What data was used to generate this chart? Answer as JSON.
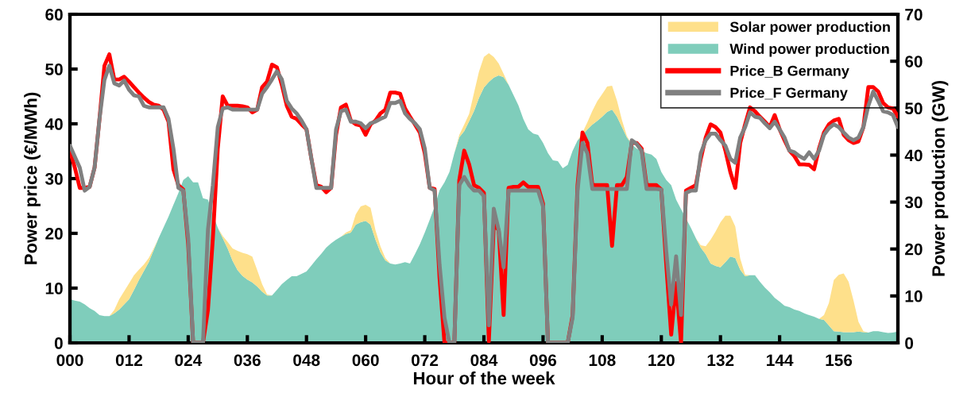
{
  "chart_data": {
    "type": "line",
    "xlabel": "Hour of the week",
    "ylabel": "Power price (€/MWh)",
    "y2label": "Power production (GW)",
    "x": [
      0,
      1,
      2,
      3,
      4,
      5,
      6,
      7,
      8,
      9,
      10,
      11,
      12,
      13,
      14,
      15,
      16,
      17,
      18,
      19,
      20,
      21,
      22,
      23,
      24,
      25,
      26,
      27,
      28,
      29,
      30,
      31,
      32,
      33,
      34,
      35,
      36,
      37,
      38,
      39,
      40,
      41,
      42,
      43,
      44,
      45,
      46,
      47,
      48,
      49,
      50,
      51,
      52,
      53,
      54,
      55,
      56,
      57,
      58,
      59,
      60,
      61,
      62,
      63,
      64,
      65,
      66,
      67,
      68,
      69,
      70,
      71,
      72,
      73,
      74,
      75,
      76,
      77,
      78,
      79,
      80,
      81,
      82,
      83,
      84,
      85,
      86,
      87,
      88,
      89,
      90,
      91,
      92,
      93,
      94,
      95,
      96,
      97,
      98,
      99,
      100,
      101,
      102,
      103,
      104,
      105,
      106,
      107,
      108,
      109,
      110,
      111,
      112,
      113,
      114,
      115,
      116,
      117,
      118,
      119,
      120,
      121,
      122,
      123,
      124,
      125,
      126,
      127,
      128,
      129,
      130,
      131,
      132,
      133,
      134,
      135,
      136,
      137,
      138,
      139,
      140,
      141,
      142,
      143,
      144,
      145,
      146,
      147,
      148,
      149,
      150,
      151,
      152,
      153,
      154,
      155,
      156,
      157,
      158,
      159,
      160,
      161,
      162,
      163,
      164,
      165,
      166,
      167,
      168
    ],
    "xlim": [
      0,
      168
    ],
    "xticks": [
      {
        "value": 0,
        "label": "000"
      },
      {
        "value": 12,
        "label": "012"
      },
      {
        "value": 24,
        "label": "024"
      },
      {
        "value": 36,
        "label": "036"
      },
      {
        "value": 48,
        "label": "048"
      },
      {
        "value": 60,
        "label": "060"
      },
      {
        "value": 72,
        "label": "072"
      },
      {
        "value": 84,
        "label": "084"
      },
      {
        "value": 96,
        "label": "096"
      },
      {
        "value": 108,
        "label": "108"
      },
      {
        "value": 120,
        "label": "120"
      },
      {
        "value": 132,
        "label": "132"
      },
      {
        "value": 144,
        "label": "144"
      },
      {
        "value": 156,
        "label": "156"
      }
    ],
    "ylim": [
      0,
      60
    ],
    "yticks": [
      0,
      10,
      20,
      30,
      40,
      50,
      60
    ],
    "y2lim": [
      0,
      70
    ],
    "y2ticks": [
      0,
      10,
      20,
      30,
      40,
      50,
      60,
      70
    ],
    "stacked": true,
    "legend": "top right",
    "grid": false,
    "series": [
      {
        "name": "Wind power production",
        "type": "area",
        "axis": "y2",
        "color": "#7fcdbb",
        "values": [
          9.3,
          9.0,
          8.8,
          8.2,
          7.4,
          6.8,
          5.9,
          5.7,
          5.7,
          6.3,
          7.1,
          8.2,
          9.3,
          11.3,
          13.4,
          15.3,
          17.2,
          19.8,
          22.3,
          24.6,
          26.9,
          29.4,
          31.9,
          34.7,
          35.5,
          34.2,
          34.2,
          30.8,
          30.5,
          27.4,
          24.5,
          22.3,
          20.1,
          17.5,
          15.5,
          14.3,
          13.5,
          12.9,
          12.0,
          10.9,
          10.1,
          10.1,
          11.3,
          12.5,
          13.4,
          14.2,
          14.2,
          14.7,
          15.2,
          16.5,
          17.8,
          19.0,
          20.3,
          21.2,
          22.0,
          22.6,
          23.2,
          23.5,
          25.2,
          25.7,
          26.0,
          25.2,
          22.0,
          19.3,
          17.6,
          16.9,
          16.7,
          16.9,
          17.2,
          16.9,
          18.9,
          21.0,
          23.5,
          26.2,
          29.1,
          32.5,
          34.2,
          36.4,
          40.4,
          43.8,
          45.1,
          47.2,
          49.4,
          52.2,
          54.4,
          55.6,
          56.5,
          57.0,
          56.6,
          55.0,
          52.8,
          50.6,
          47.7,
          45.5,
          44.6,
          44.3,
          42.6,
          40.4,
          38.9,
          38.7,
          37.2,
          37.9,
          40.9,
          43.1,
          44.3,
          45.5,
          46.5,
          47.3,
          48.2,
          49.2,
          49.7,
          48.2,
          46.0,
          43.8,
          42.3,
          41.4,
          40.9,
          40.4,
          40.1,
          39.2,
          36.4,
          34.7,
          33.6,
          30.5,
          28.5,
          26.5,
          24.5,
          22.3,
          20.3,
          18.9,
          16.9,
          16.4,
          16.1,
          17.2,
          18.4,
          18.1,
          15.6,
          14.2,
          14.4,
          14.4,
          13.0,
          11.8,
          10.8,
          9.6,
          8.8,
          7.9,
          7.6,
          7.1,
          6.8,
          6.3,
          5.9,
          5.6,
          5.1,
          4.9,
          3.7,
          2.5,
          2.4,
          2.3,
          2.3,
          2.3,
          2.4,
          2.3,
          2.2,
          2.5,
          2.5,
          2.3,
          2.1,
          2.2,
          2.4
        ]
      },
      {
        "name": "Solar power production",
        "type": "area",
        "axis": "y2",
        "color": "#fee08b",
        "values": [
          0,
          0,
          0,
          0,
          0,
          0,
          0,
          0,
          0,
          0.7,
          2.2,
          2.8,
          3.4,
          3.1,
          2.2,
          1.4,
          0.9,
          0.3,
          0,
          0,
          0,
          0,
          0,
          0,
          0,
          0,
          0,
          0,
          0,
          0,
          0,
          0.5,
          1.4,
          2.6,
          4.1,
          4.9,
          5.4,
          5.5,
          3.5,
          1.6,
          0.2,
          0,
          0,
          0,
          0,
          0,
          0,
          0,
          0,
          0,
          0,
          0,
          0,
          0,
          0,
          0,
          0.3,
          0.5,
          2.2,
          3.4,
          3.4,
          3.6,
          2.0,
          1.3,
          0.5,
          0,
          0,
          0,
          0,
          0,
          0,
          0,
          0,
          0,
          0,
          0,
          0,
          0,
          0,
          0.5,
          1.4,
          1.6,
          3.9,
          5.6,
          6.5,
          6.1,
          4.4,
          2.5,
          0.7,
          0,
          0,
          0,
          0,
          0,
          0,
          0,
          0,
          0,
          0,
          0,
          0,
          0,
          0,
          0,
          0.5,
          1.5,
          2.9,
          4.2,
          4.8,
          5.4,
          5.1,
          3.4,
          1.5,
          0.3,
          0,
          0,
          0,
          0,
          0,
          0,
          0,
          0,
          0,
          0,
          0,
          0,
          0,
          0,
          0.5,
          1.7,
          5.1,
          7.3,
          9.6,
          9.9,
          8.7,
          6.7,
          2.4,
          0.3,
          0,
          0,
          0,
          0,
          0,
          0,
          0,
          0,
          0,
          0,
          0,
          0,
          0,
          0,
          0,
          1.0,
          4.8,
          10.9,
          12.1,
          12.5,
          10.7,
          6.7,
          2.1,
          0.2,
          0,
          0,
          0,
          0,
          0,
          0,
          0
        ]
      },
      {
        "name": "Price_B Germany",
        "type": "line",
        "axis": "y",
        "color": "#ff0000",
        "values": [
          35.1,
          32,
          28.3,
          28.3,
          28.5,
          32,
          40.9,
          50.6,
          52.7,
          48.1,
          48.1,
          48.6,
          47.7,
          46.7,
          45.7,
          44.8,
          44,
          43.5,
          43.3,
          42.6,
          40.4,
          31.7,
          28.8,
          28,
          18,
          0,
          0,
          0,
          6,
          19.1,
          35.5,
          45,
          43.3,
          43.3,
          43.3,
          43.2,
          43,
          42.1,
          42.6,
          46.7,
          47.7,
          50.8,
          50.3,
          47.1,
          43.3,
          41.3,
          40.9,
          39.9,
          39,
          33.6,
          28.8,
          28.5,
          27.5,
          28.3,
          38,
          43,
          43.5,
          40.6,
          39.9,
          39.7,
          38,
          39.9,
          40.6,
          41.9,
          42.6,
          45.7,
          45.7,
          45.5,
          42.8,
          41.3,
          39.9,
          38.4,
          34.6,
          28.3,
          28.1,
          11.9,
          0,
          0,
          0,
          29.7,
          35.1,
          32.6,
          28.8,
          28.3,
          27.4,
          0.3,
          21.6,
          20.6,
          5.1,
          28.3,
          28.5,
          28.5,
          29.3,
          28.5,
          28.5,
          28.5,
          25.4,
          0,
          0,
          0,
          0,
          0,
          5,
          28.8,
          38.4,
          36.5,
          28.8,
          28.8,
          28.8,
          28.8,
          17.7,
          28.8,
          28.8,
          30.3,
          36.5,
          36.5,
          35.5,
          28.8,
          28.8,
          28.8,
          28,
          14.3,
          1.5,
          10.9,
          0,
          27.8,
          28.3,
          28.8,
          33.6,
          37.5,
          39.9,
          39.4,
          38.4,
          35.1,
          31.2,
          28.3,
          36.5,
          39.9,
          43,
          42.3,
          41.3,
          40.4,
          39.4,
          41.6,
          39,
          37,
          35.1,
          34.1,
          32.6,
          32.6,
          32.5,
          31.7,
          35.5,
          38.4,
          39.9,
          40.6,
          40.9,
          38,
          37,
          36.5,
          36.8,
          39.4,
          46.7,
          46.7,
          45.9,
          43.8,
          43,
          42.8,
          41.3
        ]
      },
      {
        "name": "Price_F Germany",
        "type": "line",
        "axis": "y",
        "color": "#808080",
        "values": [
          36,
          34,
          32,
          27.8,
          28.5,
          32,
          40.9,
          48,
          50.6,
          47.4,
          47,
          47.9,
          46.2,
          45.2,
          45,
          43.3,
          43,
          43,
          43,
          43,
          40.9,
          35.5,
          28.3,
          27.8,
          19.1,
          0,
          0,
          0,
          20.6,
          28.8,
          39.4,
          42.8,
          43,
          42.6,
          42.6,
          42.6,
          42.6,
          42.6,
          42.6,
          45.5,
          46.7,
          48.1,
          49.6,
          48.1,
          44.2,
          42.8,
          41.9,
          40.6,
          39,
          33.6,
          28.3,
          28.3,
          28.3,
          28.3,
          39,
          42.3,
          42.6,
          40.4,
          40.4,
          40.1,
          39.2,
          40.1,
          40.4,
          40.9,
          41.3,
          43.8,
          43.8,
          44.2,
          41.9,
          40.9,
          40.1,
          39,
          35.5,
          28.3,
          27.8,
          14.3,
          4.6,
          0,
          0,
          28.8,
          30.3,
          28.8,
          27.8,
          27.8,
          26.8,
          3.2,
          24.5,
          20.6,
          13.8,
          27.8,
          27.8,
          27.8,
          27.8,
          27.8,
          27.8,
          27.8,
          24.9,
          0,
          0,
          0,
          0,
          0,
          4.6,
          27.8,
          36.5,
          34.6,
          28.1,
          28.1,
          28.1,
          28.1,
          28.1,
          28.1,
          28.1,
          28.1,
          37,
          36.3,
          35.1,
          28.1,
          28.1,
          28.1,
          28,
          16.7,
          7,
          15.8,
          5.1,
          27.4,
          27.8,
          27.8,
          34.6,
          37,
          38.2,
          38.2,
          37,
          36,
          33.6,
          32.9,
          37.5,
          39.4,
          42.1,
          41.3,
          41.1,
          40.1,
          39.2,
          40.4,
          39,
          37.5,
          35.1,
          34.8,
          34.1,
          33.6,
          34.8,
          33.6,
          35.1,
          38,
          39.2,
          39.9,
          39.4,
          38.4,
          37.5,
          37,
          37.5,
          39.4,
          43.3,
          45.9,
          44.2,
          42.3,
          42.1,
          41.6,
          39.4
        ]
      }
    ]
  }
}
